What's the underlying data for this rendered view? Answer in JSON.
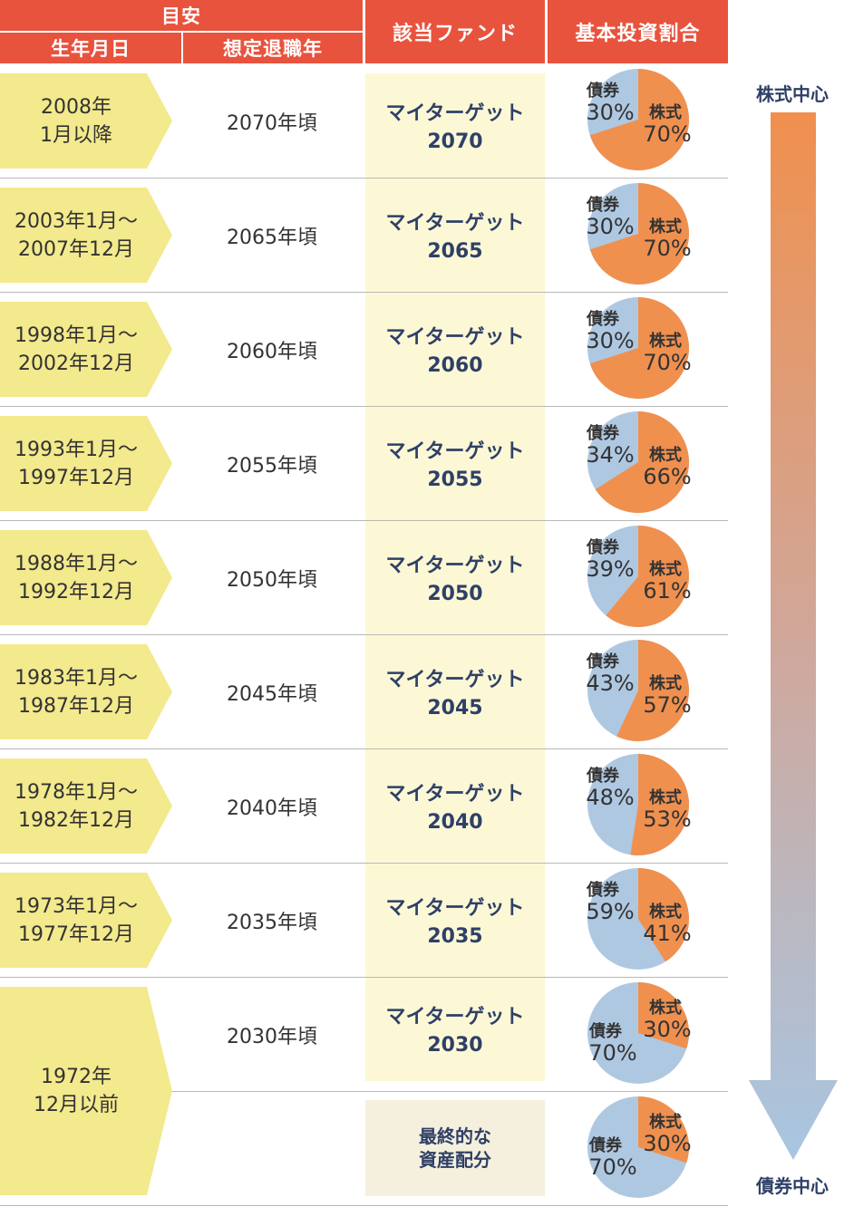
{
  "header": {
    "guide": "目安",
    "birth": "生年月日",
    "retire": "想定退職年",
    "fund": "該当ファンド",
    "alloc": "基本投資割合"
  },
  "trend": {
    "top": "株式中心",
    "bottom": "債券中心"
  },
  "colors": {
    "header": "#e8533e",
    "stock": "#f0904f",
    "bond": "#afc8e2",
    "birth": "#f3e98d",
    "fund_bg": "#fcf8d6"
  },
  "labels": {
    "stock": "株式",
    "bond": "債券",
    "pct": "%"
  },
  "rows": [
    {
      "birth1": "2008年",
      "birth2": "1月以降",
      "retire": "2070年頃",
      "fund1": "マイターゲット",
      "fund2": "2070",
      "stock": 70,
      "bond": 30
    },
    {
      "birth1": "2003年1月～",
      "birth2": "2007年12月",
      "retire": "2065年頃",
      "fund1": "マイターゲット",
      "fund2": "2065",
      "stock": 70,
      "bond": 30
    },
    {
      "birth1": "1998年1月～",
      "birth2": "2002年12月",
      "retire": "2060年頃",
      "fund1": "マイターゲット",
      "fund2": "2060",
      "stock": 70,
      "bond": 30
    },
    {
      "birth1": "1993年1月～",
      "birth2": "1997年12月",
      "retire": "2055年頃",
      "fund1": "マイターゲット",
      "fund2": "2055",
      "stock": 66,
      "bond": 34
    },
    {
      "birth1": "1988年1月～",
      "birth2": "1992年12月",
      "retire": "2050年頃",
      "fund1": "マイターゲット",
      "fund2": "2050",
      "stock": 61,
      "bond": 39
    },
    {
      "birth1": "1983年1月～",
      "birth2": "1987年12月",
      "retire": "2045年頃",
      "fund1": "マイターゲット",
      "fund2": "2045",
      "stock": 57,
      "bond": 43
    },
    {
      "birth1": "1978年1月～",
      "birth2": "1982年12月",
      "retire": "2040年頃",
      "fund1": "マイターゲット",
      "fund2": "2040",
      "stock": 53,
      "bond": 48
    },
    {
      "birth1": "1973年1月～",
      "birth2": "1977年12月",
      "retire": "2035年頃",
      "fund1": "マイターゲット",
      "fund2": "2035",
      "stock": 41,
      "bond": 59
    },
    {
      "birth1": "1972年",
      "birth2": "12月以前",
      "retire": "2030年頃",
      "fund1": "マイターゲット",
      "fund2": "2030",
      "stock": 30,
      "bond": 70
    }
  ],
  "final": {
    "line1": "最終的な",
    "line2": "資産配分",
    "stock": 30,
    "bond": 70
  }
}
